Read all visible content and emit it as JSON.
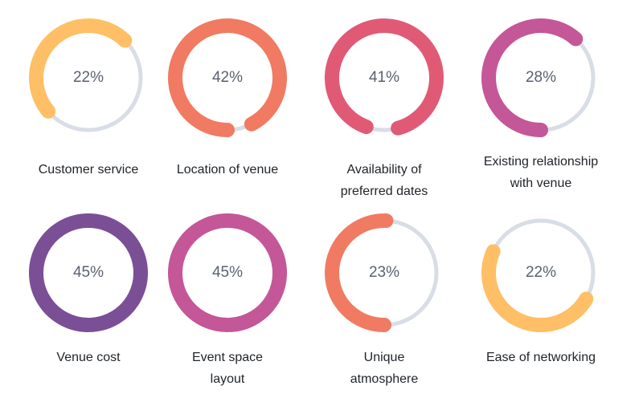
{
  "chart_data": {
    "type": "donut",
    "direction": "counterclockwise",
    "items": [
      {
        "label": "Customer service",
        "value": 22,
        "value_label": "22%",
        "color": "#FFBF66",
        "track_color": "#D8DDE6"
      },
      {
        "label": "Location of venue",
        "value": 42,
        "value_label": "42%",
        "color": "#F07B62",
        "track_color": "#D8DDE6"
      },
      {
        "label": "Availability of preferred dates",
        "value": 41,
        "value_label": "41%",
        "color": "#E05A76",
        "track_color": "#D8DDE6"
      },
      {
        "label": "Existing relationship with venue",
        "value": 28,
        "value_label": "28%",
        "color": "#C45798",
        "track_color": "#D8DDE6"
      },
      {
        "label": "Venue cost",
        "value": 45,
        "value_label": "45%",
        "color": "#7A4F96",
        "track_color": "#D8DDE6"
      },
      {
        "label": "Event space layout",
        "value": 45,
        "value_label": "45%",
        "color": "#C45798",
        "track_color": "#D8DDE6"
      },
      {
        "label": "Unique atmosphere",
        "value": 23,
        "value_label": "23%",
        "color": "#F07B62",
        "track_color": "#D8DDE6"
      },
      {
        "label": "Ease of networking",
        "value": 22,
        "value_label": "22%",
        "color": "#FFBF66",
        "track_color": "#D8DDE6"
      }
    ]
  }
}
